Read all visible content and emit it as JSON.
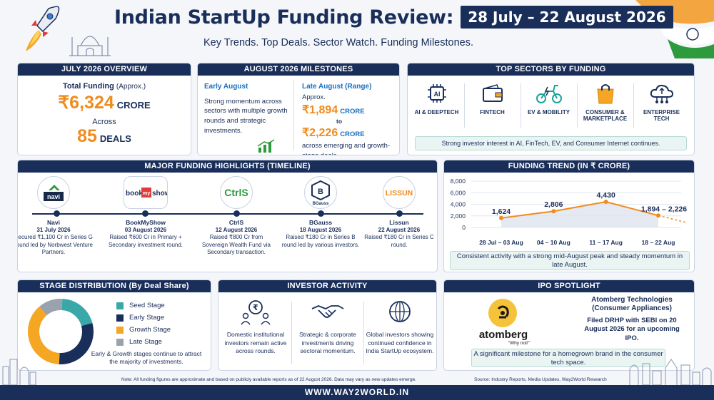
{
  "header": {
    "title": "Indian StartUp Funding Review:",
    "date_range": "28 July – 22 August 2026",
    "subtitle": "Key Trends. Top Deals. Sector Watch. Funding Milestones."
  },
  "july_overview": {
    "heading": "JULY 2026 OVERVIEW",
    "total_label": "Total Funding",
    "total_qualifier": "(Approx.)",
    "total_value": "₹6,324",
    "total_unit": "CRORE",
    "across": "Across",
    "deals_value": "85",
    "deals_unit": "DEALS"
  },
  "august_milestones": {
    "heading": "AUGUST 2026 MILESTONES",
    "early_heading": "Early August",
    "early_text": "Strong momentum across sectors with multiple growth rounds and strategic investments.",
    "late_heading": "Late August (Range)",
    "late_approx": "Approx.",
    "late_low": "₹1,894",
    "late_high": "₹2,226",
    "unit": "CRORE",
    "to": "to",
    "late_text": "across emerging and growth-stage deals."
  },
  "top_sectors": {
    "heading": "TOP SECTORS BY FUNDING",
    "items": [
      {
        "label": "AI & DEEPTECH",
        "icon": "ai-chip-icon"
      },
      {
        "label": "FINTECH",
        "icon": "wallet-icon"
      },
      {
        "label": "EV & MOBILITY",
        "icon": "scooter-icon"
      },
      {
        "label": "CONSUMER & MARKETPLACE",
        "icon": "shopping-bag-icon"
      },
      {
        "label": "ENTERPRISE TECH",
        "icon": "cloud-network-icon"
      }
    ],
    "note": "Strong investor interest in AI, FinTech, EV, and Consumer Internet continues."
  },
  "highlights": {
    "heading": "MAJOR FUNDING HIGHLIGHTS (TIMELINE)",
    "items": [
      {
        "name": "Navi",
        "date": "31 July 2026",
        "desc": "Secured ₹1,100 Cr in Series G round led by Norbwest Venture Partners.",
        "logo": "navi"
      },
      {
        "name": "BookMyShow",
        "date": "03 August 2026",
        "desc": "Raised ₹600 Cr in Primary + Secondary investment round.",
        "logo": "bookmyshow"
      },
      {
        "name": "CtrlS",
        "date": "12 August 2026",
        "desc": "Raised ₹800 Cr from Sovereign Wealth Fund via Secondary transaction.",
        "logo": "CtrlS"
      },
      {
        "name": "BGauss",
        "date": "18 August 2026",
        "desc": "Raised ₹180 Cr in Series B round led by various investors.",
        "logo": "BGauss"
      },
      {
        "name": "Lissun",
        "date": "22 August 2026",
        "desc": "Raised ₹180 Cr in Series C round.",
        "logo": "LISSUN"
      }
    ]
  },
  "trend": {
    "heading": "FUNDING TREND (IN ₹ CRORE)",
    "note": "Consistent activity with a strong mid-August peak and steady momentum in late August."
  },
  "chart_data": {
    "type": "line",
    "title": "FUNDING TREND (IN ₹ CRORE)",
    "categories": [
      "28 Jul – 03 Aug",
      "04 – 10 Aug",
      "11 – 17 Aug",
      "18 – 22 Aug"
    ],
    "values": [
      1624,
      2806,
      4430,
      2060
    ],
    "point_labels": [
      "1,624",
      "2,806",
      "4,430",
      "1,894 – 2,226"
    ],
    "yticks": [
      "0",
      "2,000",
      "4,000",
      "6,000",
      "8,000"
    ],
    "ylim": [
      0,
      8000
    ],
    "line_color": "#f08c1e",
    "grid": true
  },
  "stage": {
    "heading": "STAGE DISTRIBUTION (By Deal Share)",
    "legend": [
      {
        "label": "Seed Stage",
        "color": "#3aa8a8"
      },
      {
        "label": "Early Stage",
        "color": "#1a2e5a"
      },
      {
        "label": "Growth Stage",
        "color": "#f5a623"
      },
      {
        "label": "Late Stage",
        "color": "#9aa3ad"
      }
    ],
    "shares": [
      0.2,
      0.3,
      0.38,
      0.12
    ],
    "note": "Early & Growth stages continue to attract the majority of investments."
  },
  "investor": {
    "heading": "INVESTOR ACTIVITY",
    "items": [
      {
        "text": "Domestic institutional investors remain active across rounds.",
        "icon": "rupee-people-icon"
      },
      {
        "text": "Strategic & corporate investments driving sectoral momentum.",
        "icon": "handshake-icon"
      },
      {
        "text": "Global investors showing continued confidence in India StartUp ecosystem.",
        "icon": "globe-icon"
      }
    ]
  },
  "ipo": {
    "heading": "IPO SPOTLIGHT",
    "company": "Atomberg Technologies",
    "category": "(Consumer Appliances)",
    "filing": "Filed DRHP with SEBI on 20 August 2026 for an upcoming IPO.",
    "logo_text": "atomberg",
    "logo_tag": "\"Why not!\"",
    "note": "A significant milestone for a homegrown brand in the consumer tech space."
  },
  "footer": {
    "note": "Note: All funding figures are approximate and based on publicly available reports as of 22 August 2026. Data may vary as new updates emerge.",
    "source": "Source: Industry Reports, Media Updates, Way2World Research",
    "site": "WWW.WAY2WORLD.IN"
  }
}
